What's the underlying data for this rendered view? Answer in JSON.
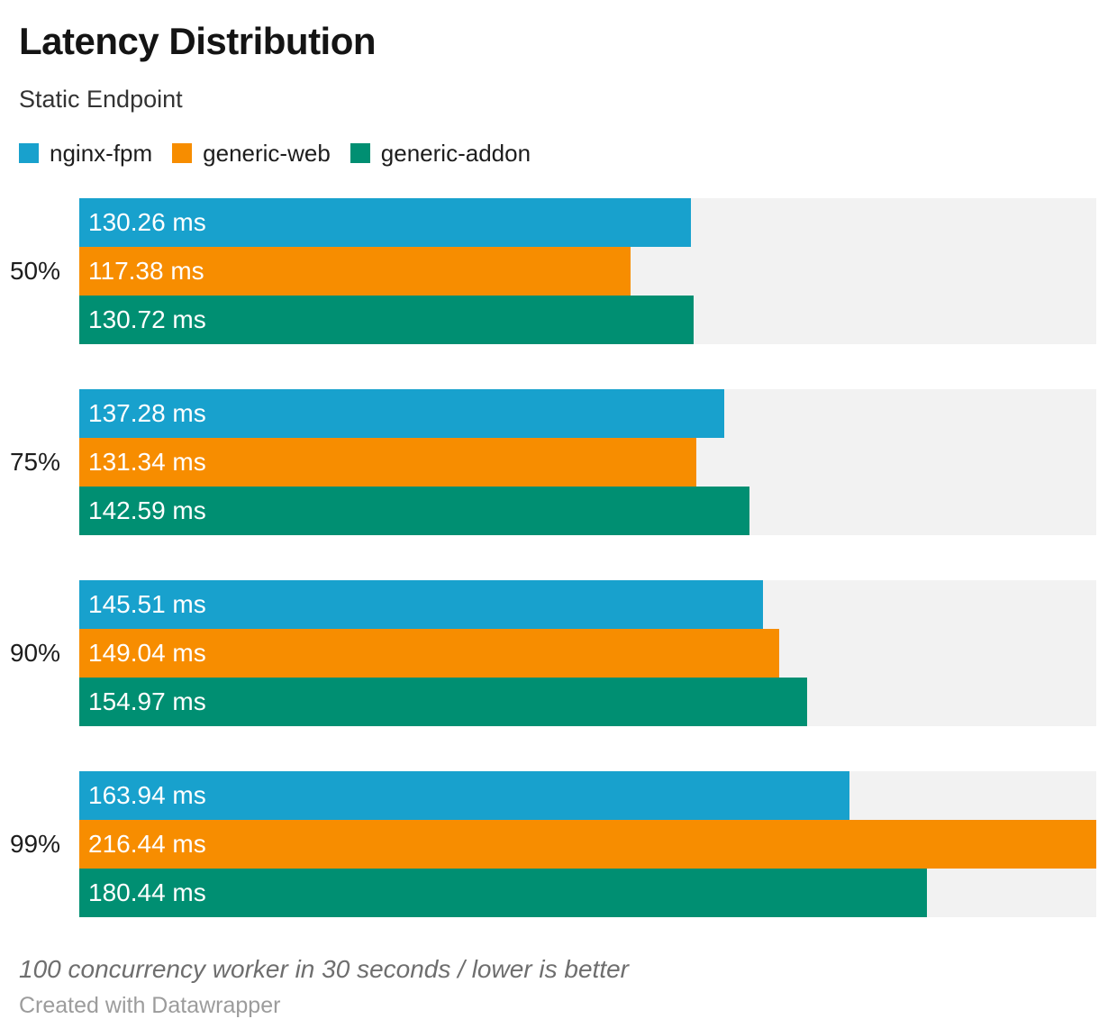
{
  "header": {
    "title": "Latency Distribution",
    "subtitle": "Static Endpoint"
  },
  "legend": {
    "items": [
      {
        "label": "nginx-fpm",
        "color": "#18a1cd"
      },
      {
        "label": "generic-web",
        "color": "#f78d00"
      },
      {
        "label": "generic-addon",
        "color": "#008f72"
      }
    ]
  },
  "chart_data": {
    "type": "bar",
    "orientation": "horizontal",
    "title": "Latency Distribution",
    "subtitle": "Static Endpoint",
    "categories": [
      "50%",
      "75%",
      "90%",
      "99%"
    ],
    "series": [
      {
        "name": "nginx-fpm",
        "color": "#18a1cd",
        "values": [
          130.26,
          137.28,
          145.51,
          163.94
        ]
      },
      {
        "name": "generic-web",
        "color": "#f78d00",
        "values": [
          117.38,
          131.34,
          149.04,
          216.44
        ]
      },
      {
        "name": "generic-addon",
        "color": "#008f72",
        "values": [
          130.72,
          142.59,
          154.97,
          180.44
        ]
      }
    ],
    "value_suffix": " ms",
    "value_decimals": 2,
    "xlim": [
      0,
      216.44
    ],
    "track_color": "#f2f2f2",
    "grid": false,
    "legend_position": "top",
    "value_labels_inside": true
  },
  "footer": {
    "note": "100 concurrency worker in 30 seconds / lower is better",
    "attribution": "Created with Datawrapper"
  }
}
